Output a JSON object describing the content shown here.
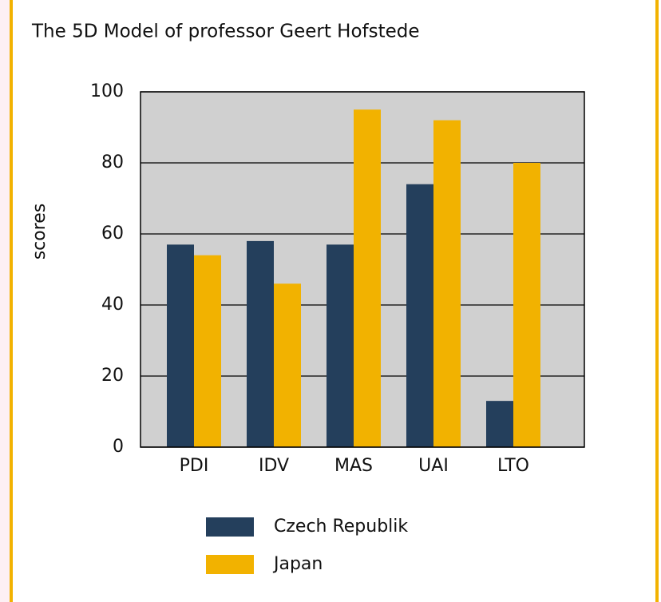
{
  "chart_data": {
    "type": "bar",
    "title": "The 5D Model of professor Geert Hofstede",
    "y_label": "scores",
    "categories": [
      "PDI",
      "IDV",
      "MAS",
      "UAI",
      "LTO"
    ],
    "series": [
      {
        "name": "Czech Republik",
        "color": "#243f5c",
        "values": [
          57,
          58,
          57,
          74,
          13
        ]
      },
      {
        "name": "Japan",
        "color": "#f2b200",
        "values": [
          54,
          46,
          95,
          92,
          80
        ]
      }
    ],
    "ylim": [
      0,
      100
    ],
    "yticks": [
      0,
      20,
      40,
      60,
      80,
      100
    ],
    "grid": true
  }
}
